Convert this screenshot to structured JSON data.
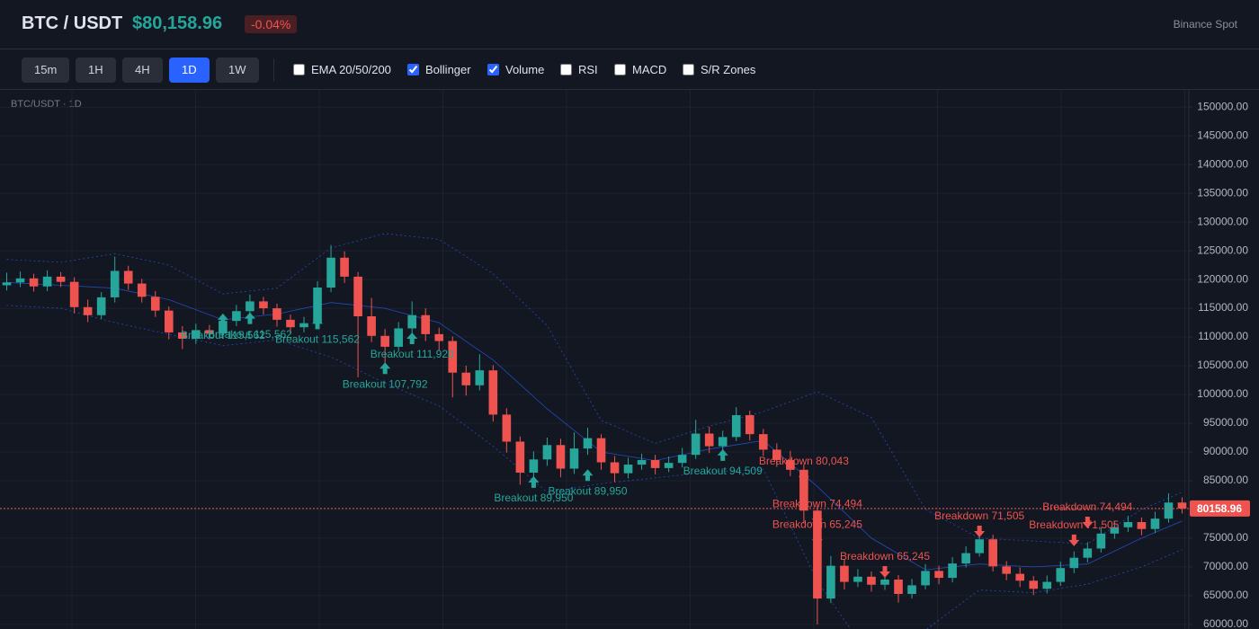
{
  "header": {
    "symbol": "BTC / USDT",
    "price": "$80,158.96",
    "change": "-0.04%",
    "exchange": "Binance Spot"
  },
  "toolbar": {
    "timeframes": [
      "15m",
      "1H",
      "4H",
      "1D",
      "1W"
    ],
    "active": 3,
    "indicators": [
      {
        "label": "EMA 20/50/200",
        "checked": false
      },
      {
        "label": "Bollinger",
        "checked": true
      },
      {
        "label": "Volume",
        "checked": true
      },
      {
        "label": "RSI",
        "checked": false
      },
      {
        "label": "MACD",
        "checked": false
      },
      {
        "label": "S/R Zones",
        "checked": false
      }
    ]
  },
  "chart_data": {
    "type": "candlestick",
    "title": "BTC/USDT · 1D",
    "up_color": "#26a69a",
    "down_color": "#ef5350",
    "candles": {
      "open": [
        119000,
        119500,
        120200,
        118800,
        120500,
        119600,
        115200,
        113800,
        116900,
        121500,
        119300,
        117000,
        114600,
        110800,
        109700,
        111200,
        110600,
        112800,
        114500,
        116200,
        115000,
        113000,
        111700,
        112400,
        118600,
        123800,
        120500,
        113600,
        110200,
        108300,
        111500,
        113800,
        110500,
        109300,
        103800,
        101600,
        104200,
        96500,
        91800,
        86400,
        88700,
        91200,
        87100,
        90600,
        92400,
        88200,
        86300,
        87800,
        88600,
        87200,
        88100,
        89500,
        93200,
        91000,
        92600,
        96400,
        93100,
        90400,
        88600,
        86900,
        79800,
        64500,
        70200,
        67400,
        68300,
        66900,
        67800,
        65300,
        66800,
        69300,
        68100,
        70600,
        72400,
        74800,
        70100,
        68800,
        67600,
        66200,
        67400,
        69800,
        71600,
        73200,
        75800,
        76900,
        77800,
        76600,
        78400,
        81200
      ],
      "high": [
        121200,
        121400,
        121000,
        121600,
        121300,
        120400,
        116500,
        117800,
        124000,
        122400,
        120100,
        118000,
        115300,
        111900,
        112300,
        112100,
        113900,
        115600,
        117400,
        117000,
        115800,
        113900,
        113500,
        119700,
        126000,
        124900,
        121300,
        116800,
        111400,
        112600,
        116200,
        115000,
        111600,
        110100,
        105000,
        107000,
        105100,
        97600,
        92700,
        90100,
        92500,
        92300,
        93400,
        94200,
        93100,
        89300,
        89000,
        89700,
        89500,
        89200,
        90700,
        95600,
        94400,
        93700,
        97800,
        97200,
        94000,
        91500,
        90200,
        87800,
        80700,
        71900,
        71300,
        69600,
        69200,
        69100,
        68600,
        67900,
        70500,
        70200,
        71700,
        73600,
        76100,
        75600,
        71000,
        69900,
        68400,
        68500,
        70900,
        72700,
        74300,
        76900,
        78000,
        78900,
        78600,
        79600,
        82800,
        82100
      ],
      "low": [
        118100,
        118700,
        117900,
        118000,
        118700,
        114100,
        112600,
        113100,
        116000,
        118200,
        116000,
        113500,
        109600,
        107900,
        108800,
        109600,
        109800,
        111900,
        113700,
        113900,
        111800,
        110500,
        110800,
        111800,
        117800,
        119400,
        103000,
        109100,
        104800,
        107400,
        110600,
        109300,
        107700,
        99500,
        99800,
        100700,
        95300,
        89900,
        84300,
        85200,
        87600,
        85600,
        86200,
        89500,
        86900,
        84800,
        85400,
        86900,
        86100,
        86500,
        87300,
        88800,
        89800,
        90200,
        91900,
        92000,
        89300,
        87400,
        85800,
        77600,
        60000,
        63700,
        66100,
        66500,
        65700,
        66000,
        63800,
        64500,
        66100,
        67000,
        67300,
        69900,
        71800,
        69200,
        67700,
        66500,
        65100,
        65400,
        66700,
        68900,
        70800,
        72500,
        74900,
        76100,
        75500,
        75900,
        77700,
        79300
      ],
      "close": [
        119500,
        120200,
        118800,
        120500,
        119600,
        115200,
        113800,
        116900,
        121500,
        119300,
        117000,
        114600,
        110800,
        109700,
        111200,
        110600,
        112800,
        114500,
        116200,
        115000,
        113000,
        111700,
        112400,
        118600,
        123800,
        120500,
        113600,
        110200,
        108300,
        111500,
        113800,
        110500,
        109300,
        103800,
        101600,
        104200,
        96500,
        91800,
        86400,
        88700,
        91200,
        87100,
        90600,
        92400,
        88200,
        86300,
        87800,
        88600,
        87200,
        88100,
        89500,
        93200,
        91000,
        92600,
        96400,
        93100,
        90400,
        88600,
        86900,
        79800,
        64500,
        70200,
        67400,
        68300,
        66900,
        67800,
        65300,
        66800,
        69300,
        68100,
        70600,
        72400,
        74800,
        70100,
        68800,
        67600,
        66200,
        67400,
        69800,
        71600,
        73200,
        75800,
        76900,
        77800,
        76600,
        78400,
        81200,
        80159
      ]
    },
    "bollinger": {
      "color": "#2962ff",
      "index": [
        0,
        4,
        8,
        12,
        16,
        20,
        24,
        28,
        32,
        36,
        40,
        44,
        48,
        52,
        56,
        60,
        64,
        68,
        72,
        76,
        80,
        84,
        87
      ],
      "upper": [
        123500,
        123000,
        124500,
        122500,
        117500,
        118500,
        125500,
        128000,
        127000,
        121000,
        112000,
        95500,
        91500,
        94500,
        97000,
        100500,
        96000,
        80000,
        75000,
        74500,
        74000,
        80000,
        83000
      ],
      "middle": [
        119500,
        119000,
        118500,
        116500,
        113000,
        114000,
        116000,
        115000,
        112500,
        106000,
        97500,
        90000,
        88500,
        90500,
        92000,
        84000,
        75000,
        69500,
        70500,
        70000,
        70500,
        75000,
        78000
      ],
      "lower": [
        115500,
        115000,
        112500,
        110500,
        108500,
        109500,
        106500,
        102000,
        98000,
        91000,
        83000,
        84500,
        85500,
        86500,
        87000,
        67500,
        54000,
        59000,
        66000,
        65500,
        67000,
        70000,
        73000
      ]
    },
    "last_price": {
      "value": 80158.96,
      "label": "80158.96"
    },
    "annotations": [
      {
        "text": "Breakout 115,562",
        "index": 16,
        "y": 113000,
        "kind": "up"
      },
      {
        "text": "Breakout 115,562",
        "index": 18,
        "y": 113200,
        "kind": "up"
      },
      {
        "text": "Breakout 115,562",
        "index": 23,
        "y": 112300,
        "kind": "up"
      },
      {
        "text": "Breakout 107,792",
        "index": 28,
        "y": 104500,
        "kind": "up"
      },
      {
        "text": "Breakout 111,920",
        "index": 30,
        "y": 109700,
        "kind": "up"
      },
      {
        "text": "Breakout 89,950",
        "index": 39,
        "y": 84700,
        "kind": "up"
      },
      {
        "text": "Breakout 89,950",
        "index": 43,
        "y": 85900,
        "kind": "up"
      },
      {
        "text": "Breakout 94,509",
        "index": 53,
        "y": 89400,
        "kind": "up"
      },
      {
        "text": "Breakdown 80,043",
        "index": 59,
        "y": 85800,
        "kind": "down"
      },
      {
        "text": "Breakdown 74,494",
        "index": 60,
        "y": 78400,
        "kind": "down"
      },
      {
        "text": "Breakdown 65,245",
        "index": 60,
        "y": 74800,
        "kind": "down"
      },
      {
        "text": "Breakdown 65,245",
        "index": 65,
        "y": 69200,
        "kind": "down"
      },
      {
        "text": "Breakdown 71,505",
        "index": 72,
        "y": 76250,
        "kind": "down"
      },
      {
        "text": "Breakdown 71,505",
        "index": 79,
        "y": 74700,
        "kind": "down"
      },
      {
        "text": "Breakdown 74,494",
        "index": 80,
        "y": 77800,
        "kind": "down"
      }
    ],
    "ylim": [
      59200,
      153000
    ],
    "grid": true,
    "yticks": [
      {
        "value": 60000,
        "label": "60000.00"
      },
      {
        "value": 65000,
        "label": "65000.00"
      },
      {
        "value": 70000,
        "label": "70000.00"
      },
      {
        "value": 75000,
        "label": "75000.00"
      },
      {
        "value": 80000,
        "label": "80000.00"
      },
      {
        "value": 85000,
        "label": "85000.00"
      },
      {
        "value": 90000,
        "label": "90000.00"
      },
      {
        "value": 95000,
        "label": "95000.00"
      },
      {
        "value": 100000,
        "label": "100000.00"
      },
      {
        "value": 105000,
        "label": "105000.00"
      },
      {
        "value": 110000,
        "label": "110000.00"
      },
      {
        "value": 115000,
        "label": "115000.00"
      },
      {
        "value": 120000,
        "label": "120000.00"
      },
      {
        "value": 125000,
        "label": "125000.00"
      },
      {
        "value": 130000,
        "label": "130000.00"
      },
      {
        "value": 135000,
        "label": "135000.00"
      },
      {
        "value": 140000,
        "label": "140000.00"
      },
      {
        "value": 145000,
        "label": "145000.00"
      },
      {
        "value": 150000,
        "label": "150000.00"
      }
    ]
  }
}
